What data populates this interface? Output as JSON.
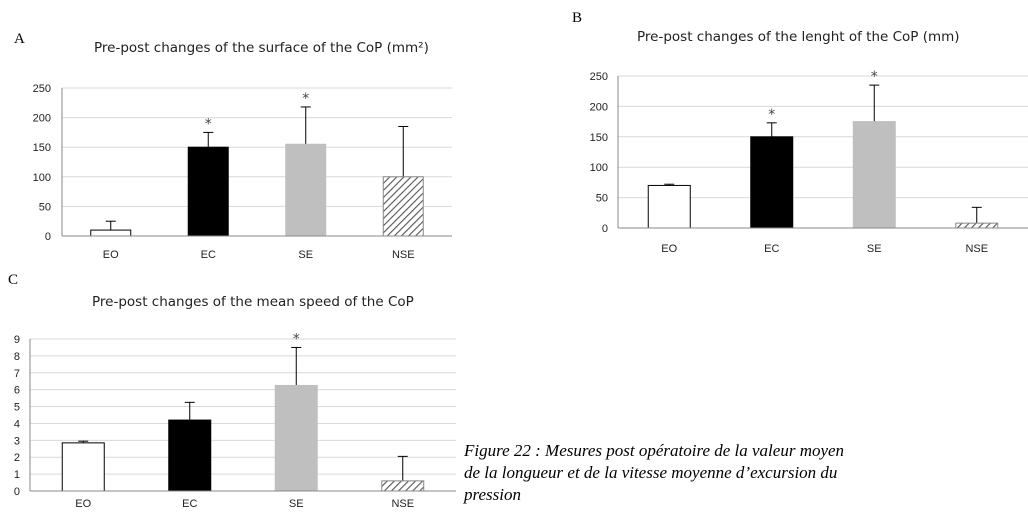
{
  "chart_data": [
    {
      "panel": "A",
      "type": "bar",
      "title": "Pre-post changes of the surface of the CoP (mm²)",
      "categories": [
        "EO",
        "EC",
        "SE",
        "NSE"
      ],
      "values": [
        10,
        150,
        155,
        100
      ],
      "error": [
        15,
        25,
        63,
        85
      ],
      "significant": [
        false,
        true,
        true,
        false
      ],
      "ylim": [
        0,
        250
      ],
      "yticks": [
        0,
        50,
        100,
        150,
        200,
        250
      ],
      "xlabel": "",
      "ylabel": "",
      "grid": true
    },
    {
      "panel": "B",
      "type": "bar",
      "title": "Pre-post changes of the lenght of the CoP (mm)",
      "categories": [
        "EO",
        "EC",
        "SE",
        "NSE"
      ],
      "values": [
        70,
        150,
        175,
        8
      ],
      "error": [
        2,
        23,
        60,
        26
      ],
      "significant": [
        false,
        true,
        true,
        false
      ],
      "ylim": [
        0,
        250
      ],
      "yticks": [
        0,
        50,
        100,
        150,
        200,
        250
      ],
      "xlabel": "",
      "ylabel": "",
      "grid": true
    },
    {
      "panel": "C",
      "type": "bar",
      "title": "Pre-post changes of the mean speed of the CoP",
      "categories": [
        "EO",
        "EC",
        "SE",
        "NSE"
      ],
      "values": [
        2.85,
        4.2,
        6.25,
        0.6
      ],
      "error": [
        0.1,
        1.05,
        2.25,
        1.45
      ],
      "significant": [
        false,
        false,
        true,
        false
      ],
      "ylim": [
        0,
        9
      ],
      "yticks": [
        0,
        1,
        2,
        3,
        4,
        5,
        6,
        7,
        8,
        9
      ],
      "xlabel": "",
      "ylabel": "",
      "grid": true
    }
  ],
  "bar_styles": [
    "white",
    "black",
    "lightgray",
    "hatched"
  ],
  "colors": {
    "black": "#000000",
    "lightgray": "#bfbfbf",
    "grid": "#d9d9d9",
    "hatch": "#555555"
  },
  "significance_marker": "*",
  "caption": {
    "line1": "Figure 22 : Mesures post opératoire de la valeur moyen",
    "line2": "de la longueur et de la vitesse moyenne d’excursion  du",
    "line3": "pression"
  }
}
